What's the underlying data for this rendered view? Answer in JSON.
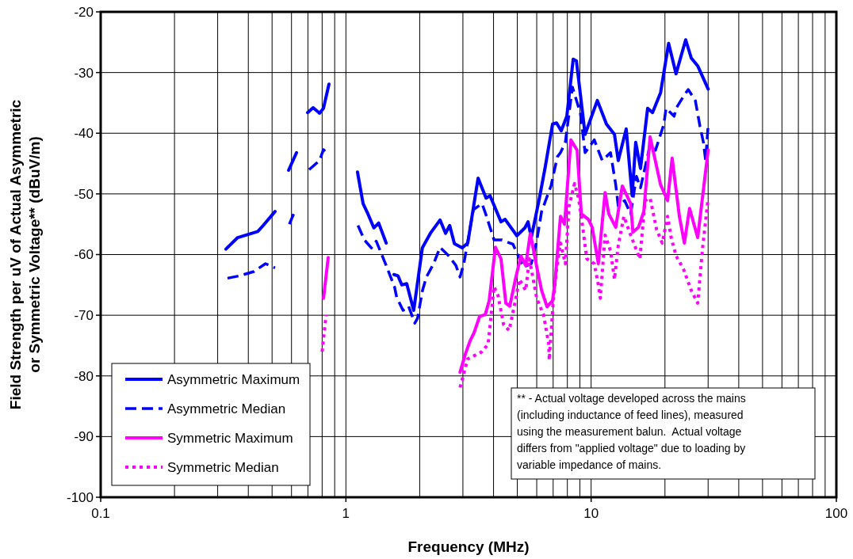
{
  "chart_data": {
    "type": "line",
    "xlabel": "Frequency (MHz)",
    "ylabel": "Field Strength per uV of Actual Asymmetric or Symmetric Voltage** (dBuV/m)",
    "log": "x",
    "xlim": [
      0.1,
      100
    ],
    "xticks": [
      0.1,
      1,
      10,
      100
    ],
    "ylim": [
      -100,
      -20
    ],
    "yticks": [
      -100,
      -90,
      -80,
      -70,
      -60,
      -50,
      -40,
      -30,
      -20
    ],
    "grid": true,
    "legend": "bottom left",
    "annotations": [
      "** - Actual voltage developed across the mains (including inductance of feed lines), measured using the measurement balun.  Actual voltage differs from \"applied voltage\" due to loading by variable impedance of mains."
    ],
    "series": [
      {
        "name": "Asymmetric Maximum",
        "color": "#0000ff",
        "line_style": "solid",
        "x": [
          0.324,
          0.362,
          0.437,
          0.46,
          0.514,
          0.55,
          0.584,
          0.629,
          0.66,
          0.698,
          0.735,
          0.781,
          0.81,
          0.853,
          0.95,
          1.115,
          1.175,
          1.23,
          1.3,
          1.36,
          1.46,
          1.52,
          1.57,
          1.63,
          1.69,
          1.77,
          1.89,
          2.05,
          2.21,
          2.42,
          2.55,
          2.65,
          2.77,
          2.98,
          3.14,
          3.46,
          3.73,
          3.87,
          4.29,
          4.46,
          4.98,
          5.37,
          5.53,
          5.7,
          6.14,
          6.51,
          6.96,
          7.23,
          7.55,
          7.96,
          8.45,
          8.71,
          9.45,
          10.6,
          11.55,
          12.45,
          12.9,
          13.9,
          14.7,
          15.2,
          15.9,
          17.0,
          17.8,
          19.2,
          20.7,
          22.2,
          24.3,
          25.6,
          27.2,
          30.0
        ],
        "values": [
          -59.1,
          -57.2,
          -56.2,
          -55.2,
          -52.9,
          null,
          -46.1,
          -43.2,
          null,
          -36.6,
          -35.8,
          -36.7,
          -35.9,
          -31.9,
          null,
          -46.4,
          -51.6,
          -53.3,
          -55.6,
          -54.8,
          -58.1,
          null,
          -63.3,
          -63.5,
          -65,
          -64.8,
          -69.2,
          -58.9,
          -56.5,
          -54.3,
          -56.5,
          -55.2,
          -58.2,
          -58.9,
          -58.1,
          -47.4,
          -50.7,
          -50.3,
          -54.6,
          -54.2,
          -56.9,
          -55.6,
          -54.6,
          -57.2,
          -50.9,
          -45.4,
          -38.5,
          -38.3,
          -39.6,
          -37.2,
          -27.8,
          -28.1,
          -40.2,
          -34.6,
          -38.5,
          -40.2,
          -44.5,
          -39.3,
          -50.3,
          -41.5,
          -45.8,
          -35.9,
          -36.6,
          -33.3,
          -25.2,
          -30.2,
          -24.6,
          -27.6,
          -28.9,
          -32.7
        ]
      },
      {
        "name": "Asymmetric Median",
        "color": "#0000ff",
        "line_style": "dashed",
        "x": [
          0.329,
          0.368,
          0.421,
          0.47,
          0.514,
          0.55,
          0.588,
          0.624,
          0.66,
          0.708,
          0.781,
          0.81,
          0.847,
          0.95,
          1.12,
          1.19,
          1.27,
          1.33,
          1.46,
          1.58,
          1.61,
          1.71,
          1.8,
          1.91,
          1.96,
          2.05,
          2.13,
          2.28,
          2.42,
          2.61,
          2.81,
          2.92,
          3.03,
          3.31,
          3.59,
          3.73,
          4.02,
          4.33,
          4.8,
          5.29,
          5.7,
          6.0,
          6.28,
          6.86,
          7.28,
          7.5,
          7.85,
          8.39,
          9.04,
          9.45,
          10.3,
          11.1,
          12.0,
          12.6,
          12.9,
          13.7,
          14.5,
          15.3,
          15.9,
          17.4,
          18.3,
          19.8,
          20.2,
          21.8,
          22.2,
          24.0,
          24.9,
          26.6,
          27.8,
          28.7,
          29.3,
          30.0
        ],
        "values": [
          -63.9,
          -63.5,
          -62.8,
          -61.5,
          -62.2,
          null,
          -55,
          -52.5,
          null,
          -46,
          -44.5,
          -42.7,
          -43.5,
          null,
          -55.2,
          -57.6,
          -58.9,
          -57.8,
          -61.8,
          -65.4,
          -67,
          -69.2,
          -68.5,
          -71.3,
          -70.5,
          -66,
          -63.7,
          -61.5,
          -58.8,
          -60.1,
          -61.8,
          -63.7,
          -61.4,
          -52.6,
          -51.6,
          -53.5,
          -57.6,
          -57.6,
          -58.3,
          -62.1,
          -61.5,
          -57.8,
          -52.9,
          -48.7,
          -43.9,
          -43.2,
          -41.5,
          -32.4,
          -36.7,
          -43.2,
          -41.1,
          -44.5,
          -43.2,
          -48.5,
          -52,
          -51.1,
          -53.3,
          -47.1,
          -49,
          -41.9,
          -42.8,
          -38.5,
          -35.9,
          -37.2,
          -35.9,
          -33.7,
          -32.8,
          -34.6,
          -38.9,
          -41.5,
          -44.5,
          -38.7
        ]
      },
      {
        "name": "Symmetric Maximum",
        "color": "#ff00ff",
        "line_style": "solid",
        "x": [
          0.81,
          0.847,
          1.5,
          2.92,
          3.07,
          3.21,
          3.33,
          3.51,
          3.7,
          3.84,
          4.07,
          4.29,
          4.49,
          4.66,
          4.91,
          5.17,
          5.41,
          5.65,
          6.0,
          6.28,
          6.61,
          6.96,
          7.12,
          7.5,
          7.79,
          8.27,
          8.77,
          9.12,
          9.75,
          10.1,
          10.7,
          11.4,
          11.8,
          12.6,
          13.4,
          14.5,
          14.8,
          15.6,
          16.4,
          17.4,
          19.2,
          20.5,
          21.4,
          22.9,
          24.0,
          25.2,
          27.2,
          30.0
        ],
        "values": [
          -67.2,
          -60.5,
          null,
          -79.4,
          -76.4,
          -74.2,
          -72.9,
          -70.2,
          -69.9,
          -67.6,
          -58.8,
          -60.7,
          -68,
          -68.5,
          -64.1,
          -60.2,
          -61.8,
          -56.5,
          -62,
          -65.9,
          -68.6,
          -67.6,
          -64.6,
          -53.7,
          -55,
          -41.1,
          -42.8,
          -53.3,
          -54.2,
          -55.5,
          -61.5,
          -49.8,
          -53.3,
          -55.5,
          -48.7,
          -51.6,
          -56.3,
          -55.5,
          -52.9,
          -40.6,
          -48.5,
          -51.1,
          -44.1,
          -53.7,
          -58.1,
          -52.4,
          -57.2,
          -42.8
        ]
      },
      {
        "name": "Symmetric Median",
        "color": "#ff00ff",
        "line_style": "dotted",
        "x": [
          0.8,
          0.83,
          1.5,
          2.92,
          3.14,
          3.56,
          3.8,
          4.02,
          4.17,
          4.4,
          4.63,
          4.91,
          5.1,
          5.41,
          5.6,
          6.0,
          6.39,
          6.71,
          6.75,
          7.01,
          7.23,
          7.5,
          7.85,
          8.13,
          8.56,
          8.89,
          9.24,
          9.6,
          10.3,
          10.7,
          10.9,
          11.4,
          12.0,
          12.45,
          12.9,
          13.6,
          14.5,
          15.8,
          16.6,
          17.4,
          18.5,
          19.5,
          20.5,
          21.2,
          22.2,
          23.8,
          25.6,
          27.2,
          28.4,
          30.0
        ],
        "values": [
          -76,
          -70,
          null,
          -81.9,
          -77.2,
          -76.1,
          -74.8,
          -65.3,
          -66.7,
          -71.6,
          -72.5,
          -67.6,
          -64.1,
          -65.9,
          -60.7,
          -67.2,
          -69.9,
          -74.6,
          -77.4,
          -67.6,
          -62.4,
          -58.1,
          -61.5,
          -52,
          -48.3,
          -50.7,
          -55.5,
          -60.7,
          -61.5,
          -65,
          -67.2,
          -56.8,
          -59.4,
          -64.1,
          -58.5,
          -53.7,
          -56.8,
          -60.7,
          -51.1,
          -50.7,
          -55.9,
          -58.1,
          -53.7,
          -57.2,
          -60.2,
          -62.4,
          -65.9,
          -68,
          -59.4,
          -50.7
        ]
      }
    ]
  }
}
